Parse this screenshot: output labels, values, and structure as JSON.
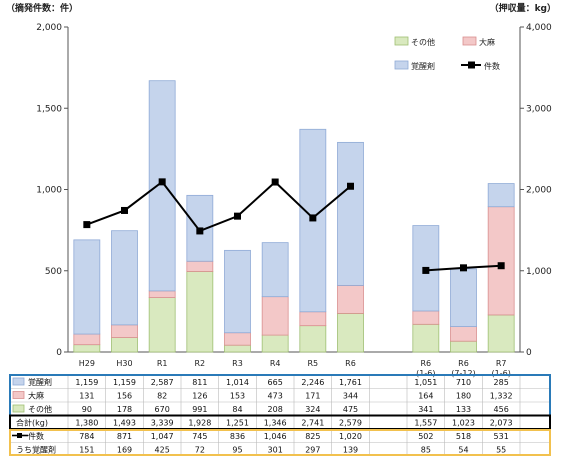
{
  "chart_data": {
    "type": "bar",
    "subtype": "stacked bar with line (dual axis) and data table",
    "left_axis_label": "（摘発件数：件）",
    "right_axis_label": "（押収量：kg）",
    "ylim_left": [
      0,
      2000
    ],
    "ylim_right": [
      0,
      4000
    ],
    "yticks_left": [
      "0",
      "500",
      "1,000",
      "1,500",
      "2,000"
    ],
    "yticks_right": [
      "0",
      "1,000",
      "2,000",
      "3,000",
      "4,000"
    ],
    "categories": [
      "H29",
      "H30",
      "R1",
      "R2",
      "R3",
      "R4",
      "R5",
      "R6",
      "",
      "R6 (1-6)",
      "R6 (7-12)",
      "R7 (1-6)"
    ],
    "category_lines": [
      [
        "H29"
      ],
      [
        "H30"
      ],
      [
        "R1"
      ],
      [
        "R2"
      ],
      [
        "R3"
      ],
      [
        "R4"
      ],
      [
        "R5"
      ],
      [
        "R6"
      ],
      [],
      [
        "R6",
        "(1-6)"
      ],
      [
        "R6",
        "(7-12)"
      ],
      [
        "R7",
        "(1-6)"
      ]
    ],
    "series": [
      {
        "name": "覚醒剤",
        "axis": "right",
        "kind": "bar",
        "color": "#c5d4ec",
        "border": "#8faad6",
        "values": [
          1159,
          1159,
          2587,
          811,
          1014,
          665,
          2246,
          1761,
          null,
          1051,
          710,
          285
        ],
        "labels": [
          "1,159",
          "1,159",
          "2,587",
          "811",
          "1,014",
          "665",
          "2,246",
          "1,761",
          "",
          "1,051",
          "710",
          "285"
        ]
      },
      {
        "name": "大麻",
        "axis": "right",
        "kind": "bar",
        "color": "#f3c8c8",
        "border": "#d98f8f",
        "values": [
          131,
          156,
          82,
          126,
          153,
          473,
          171,
          344,
          null,
          164,
          180,
          1332
        ],
        "labels": [
          "131",
          "156",
          "82",
          "126",
          "153",
          "473",
          "171",
          "344",
          "",
          "164",
          "180",
          "1,332"
        ]
      },
      {
        "name": "その他",
        "axis": "right",
        "kind": "bar",
        "color": "#d9e9bf",
        "border": "#9fbf73",
        "values": [
          90,
          178,
          670,
          991,
          84,
          208,
          324,
          475,
          null,
          341,
          133,
          456
        ],
        "labels": [
          "90",
          "178",
          "670",
          "991",
          "84",
          "208",
          "324",
          "475",
          "",
          "341",
          "133",
          "456"
        ]
      },
      {
        "name": "件数",
        "axis": "left",
        "kind": "line",
        "color": "#000000",
        "values": [
          784,
          871,
          1047,
          745,
          836,
          1046,
          825,
          1020,
          null,
          502,
          518,
          531
        ],
        "labels": [
          "784",
          "871",
          "1,047",
          "745",
          "836",
          "1,046",
          "825",
          "1,020",
          "",
          "502",
          "518",
          "531"
        ]
      }
    ],
    "table_extra_rows": [
      {
        "label": "合計(kg)",
        "values": [
          "1,380",
          "1,493",
          "3,339",
          "1,928",
          "1,251",
          "1,346",
          "2,741",
          "2,579",
          "",
          "1,557",
          "1,023",
          "2,073"
        ]
      },
      {
        "label": "うち覚醒剤",
        "values": [
          "151",
          "169",
          "425",
          "72",
          "95",
          "301",
          "297",
          "139",
          "",
          "85",
          "54",
          "55"
        ]
      }
    ],
    "legend": {
      "items": [
        {
          "label": "その他",
          "color": "#d9e9bf",
          "border": "#9fbf73",
          "kind": "box"
        },
        {
          "label": "大麻",
          "color": "#f3c8c8",
          "border": "#d98f8f",
          "kind": "box"
        },
        {
          "label": "覚醒剤",
          "color": "#c5d4ec",
          "border": "#8faad6",
          "kind": "box"
        },
        {
          "label": "件数",
          "color": "#000000",
          "kind": "line"
        }
      ]
    },
    "grid": false,
    "table_group_colors": {
      "seizure": "#2a7ab8",
      "total": "#000000",
      "cases": "#f2c14e"
    }
  }
}
